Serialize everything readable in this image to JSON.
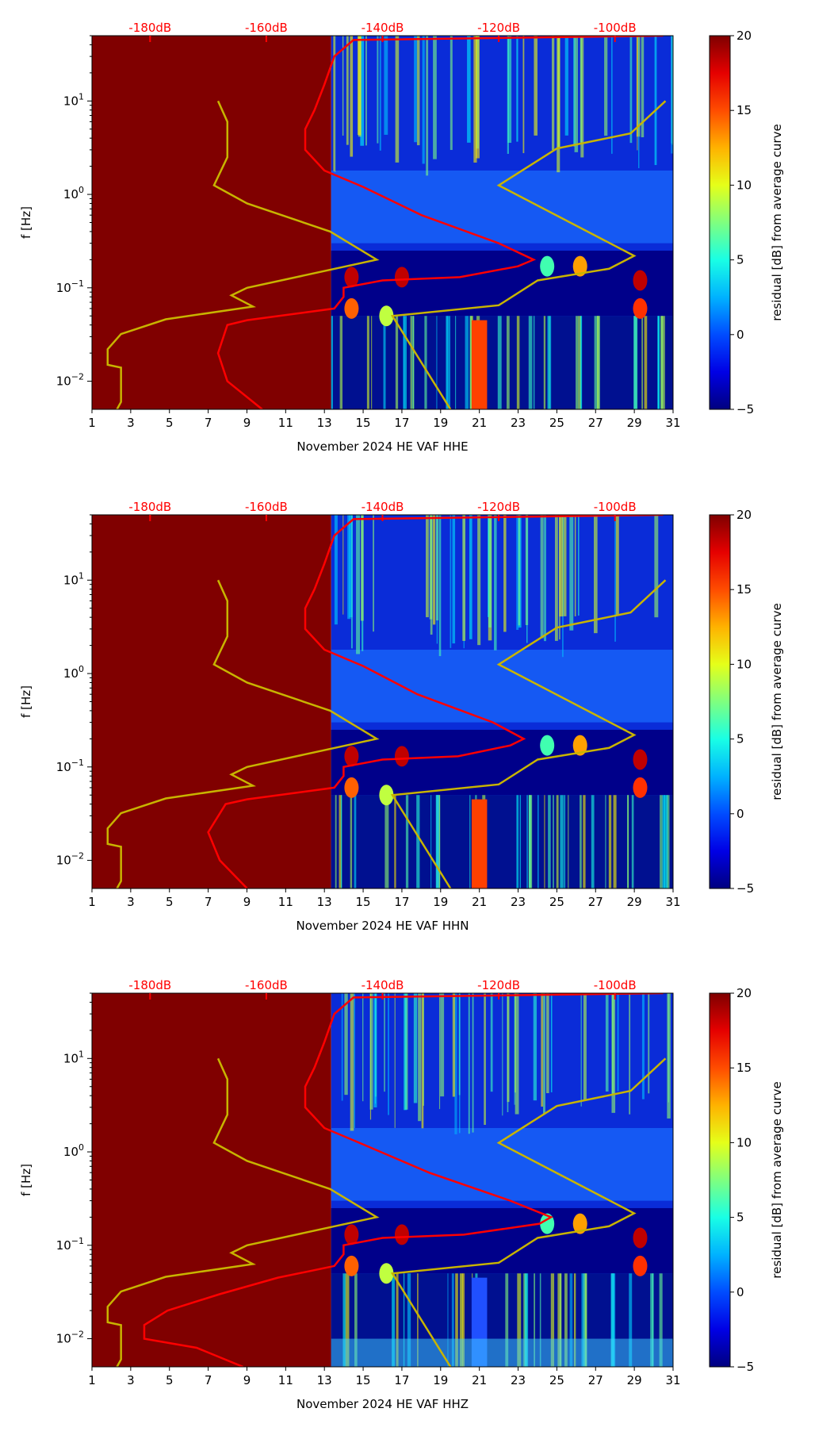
{
  "chart_data": {
    "type": "heatmap",
    "x_range_days": [
      1,
      31
    ],
    "x_ticks": [
      "1",
      "3",
      "5",
      "7",
      "9",
      "11",
      "13",
      "15",
      "17",
      "19",
      "21",
      "23",
      "25",
      "27",
      "29",
      "31"
    ],
    "y_range_hz": [
      0.005,
      50
    ],
    "y_scale": "log",
    "ylabel": "f [Hz]",
    "top_axis": {
      "range_db": [
        -190,
        -90
      ],
      "ticks": [
        -180,
        -160,
        -140,
        -120,
        -100
      ],
      "tick_labels": [
        "-180dB",
        "-160dB",
        "-140dB",
        "-120dB",
        "-100dB"
      ],
      "color": "#ff0000"
    },
    "colorbar": {
      "label": "residual [dB] from average curve",
      "range": [
        -5,
        20
      ],
      "ticks": [
        "−5",
        "0",
        "5",
        "10",
        "15",
        "20"
      ],
      "cmap": "jet"
    },
    "data_start_day": 13.35,
    "noise_model_color": "#c8b400",
    "curve_color": "#ff0000",
    "low_noise_model_db": [
      [
        -185.7,
        0.005
      ],
      [
        -185,
        0.006
      ],
      [
        -185,
        0.014
      ],
      [
        -187.3,
        0.015
      ],
      [
        -187.3,
        0.022
      ],
      [
        -185,
        0.032
      ],
      [
        -177.3,
        0.046
      ],
      [
        -162.3,
        0.063
      ],
      [
        -166,
        0.083
      ],
      [
        -163.3,
        0.1
      ],
      [
        -141,
        0.2
      ],
      [
        -149,
        0.4
      ],
      [
        -163.3,
        0.8
      ],
      [
        -169,
        1.25
      ],
      [
        -166.7,
        2.5
      ],
      [
        -166.7,
        6
      ],
      [
        -168.3,
        10
      ]
    ],
    "high_noise_model_db": [
      [
        -128.3,
        0.005
      ],
      [
        -138.3,
        0.05
      ],
      [
        -120,
        0.065
      ],
      [
        -113.3,
        0.12
      ],
      [
        -101,
        0.16
      ],
      [
        -96.7,
        0.22
      ],
      [
        -120,
        1.25
      ],
      [
        -110,
        3.1
      ],
      [
        -97.3,
        4.5
      ],
      [
        -91.3,
        10
      ]
    ],
    "panels": [
      {
        "xlabel": "November 2024 HE VAF  HHE",
        "average_curve_db": [
          [
            -160.7,
            0.005
          ],
          [
            -166.7,
            0.01
          ],
          [
            -168.3,
            0.02
          ],
          [
            -166.7,
            0.04
          ],
          [
            -163.3,
            0.045
          ],
          [
            -148.3,
            0.06
          ],
          [
            -146.7,
            0.08
          ],
          [
            -146.7,
            0.1
          ],
          [
            -140,
            0.12
          ],
          [
            -126.7,
            0.13
          ],
          [
            -116.7,
            0.17
          ],
          [
            -114,
            0.2
          ],
          [
            -120,
            0.3
          ],
          [
            -133.3,
            0.6
          ],
          [
            -143.3,
            1.2
          ],
          [
            -150,
            1.8
          ],
          [
            -153.3,
            3
          ],
          [
            -153.3,
            5
          ],
          [
            -151.7,
            8
          ],
          [
            -150,
            15
          ],
          [
            -148.3,
            30
          ],
          [
            -145,
            45
          ],
          [
            -91.7,
            50
          ]
        ]
      },
      {
        "xlabel": "November 2024 HE VAF  HHN",
        "average_curve_db": [
          [
            -163.3,
            0.005
          ],
          [
            -168,
            0.01
          ],
          [
            -170,
            0.02
          ],
          [
            -167,
            0.04
          ],
          [
            -163.3,
            0.045
          ],
          [
            -148.3,
            0.06
          ],
          [
            -146.7,
            0.08
          ],
          [
            -146.7,
            0.1
          ],
          [
            -140,
            0.12
          ],
          [
            -127,
            0.13
          ],
          [
            -118,
            0.17
          ],
          [
            -115.7,
            0.2
          ],
          [
            -121,
            0.3
          ],
          [
            -134,
            0.6
          ],
          [
            -143.3,
            1.2
          ],
          [
            -150,
            1.8
          ],
          [
            -153.3,
            3
          ],
          [
            -153.3,
            5
          ],
          [
            -151.7,
            8
          ],
          [
            -150,
            15
          ],
          [
            -148.3,
            30
          ],
          [
            -145,
            45
          ],
          [
            -91.7,
            50
          ]
        ]
      },
      {
        "xlabel": "November 2024 HE VAF  HHZ",
        "average_curve_db": [
          [
            -164,
            0.005
          ],
          [
            -172,
            0.008
          ],
          [
            -181,
            0.01
          ],
          [
            -181,
            0.014
          ],
          [
            -177,
            0.02
          ],
          [
            -168,
            0.03
          ],
          [
            -158,
            0.045
          ],
          [
            -148.3,
            0.06
          ],
          [
            -146.7,
            0.08
          ],
          [
            -146.7,
            0.1
          ],
          [
            -140,
            0.12
          ],
          [
            -126,
            0.13
          ],
          [
            -113,
            0.17
          ],
          [
            -111,
            0.2
          ],
          [
            -118,
            0.3
          ],
          [
            -132,
            0.6
          ],
          [
            -143.3,
            1.2
          ],
          [
            -150,
            1.8
          ],
          [
            -153.3,
            3
          ],
          [
            -153.3,
            5
          ],
          [
            -151.7,
            8
          ],
          [
            -150,
            15
          ],
          [
            -148.3,
            30
          ],
          [
            -145,
            45
          ],
          [
            -91.7,
            50
          ]
        ]
      }
    ]
  }
}
